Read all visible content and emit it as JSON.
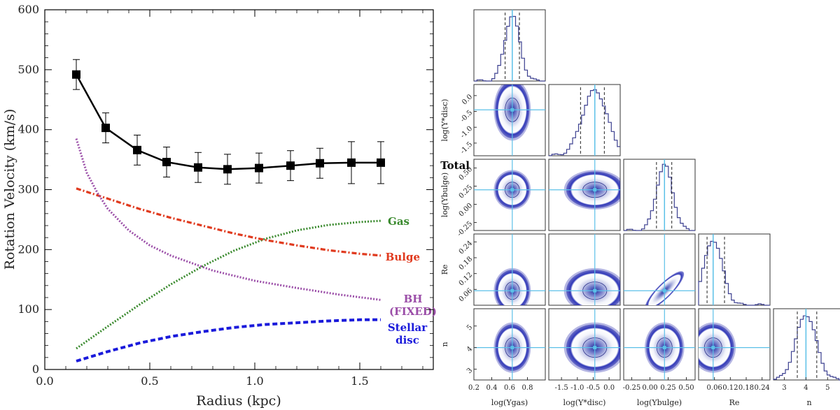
{
  "chart_data": [
    {
      "type": "line",
      "xlabel": "Radius (kpc)",
      "ylabel": "Rotation Velocity (km/s)",
      "xlim": [
        0.0,
        1.85
      ],
      "ylim": [
        0,
        600
      ],
      "xticks": [
        "0.0",
        "0.5",
        "1.0",
        "1.5"
      ],
      "yticks": [
        "0",
        "100",
        "200",
        "300",
        "400",
        "500",
        "600"
      ],
      "total": {
        "name": "Total",
        "color": "#000000",
        "points": [
          {
            "x": 0.15,
            "y": 492,
            "err": 25
          },
          {
            "x": 0.29,
            "y": 403,
            "err": 25
          },
          {
            "x": 0.44,
            "y": 366,
            "err": 25
          },
          {
            "x": 0.58,
            "y": 346,
            "err": 25
          },
          {
            "x": 0.73,
            "y": 337,
            "err": 25
          },
          {
            "x": 0.87,
            "y": 334,
            "err": 25
          },
          {
            "x": 1.02,
            "y": 336,
            "err": 25
          },
          {
            "x": 1.17,
            "y": 340,
            "err": 25
          },
          {
            "x": 1.31,
            "y": 344,
            "err": 25
          },
          {
            "x": 1.46,
            "y": 345,
            "err": 35
          },
          {
            "x": 1.6,
            "y": 345,
            "err": 35
          }
        ]
      },
      "components": [
        {
          "name": "Gas",
          "color": "#3a8a2e",
          "style": "dotted",
          "x": [
            0.15,
            0.3,
            0.45,
            0.6,
            0.75,
            0.9,
            1.05,
            1.2,
            1.35,
            1.5,
            1.6
          ],
          "y": [
            35,
            72,
            108,
            142,
            172,
            198,
            218,
            232,
            241,
            246,
            248
          ]
        },
        {
          "name": "Bulge",
          "color": "#e03a1e",
          "style": "dashdot",
          "x": [
            0.15,
            0.3,
            0.45,
            0.6,
            0.75,
            0.9,
            1.05,
            1.2,
            1.35,
            1.5,
            1.6
          ],
          "y": [
            302,
            285,
            268,
            253,
            240,
            227,
            216,
            207,
            199,
            193,
            190
          ]
        },
        {
          "name": "BH (FIXED)",
          "color": "#9b4ea8",
          "style": "dotted",
          "x": [
            0.15,
            0.2,
            0.25,
            0.3,
            0.4,
            0.5,
            0.6,
            0.8,
            1.0,
            1.2,
            1.4,
            1.6
          ],
          "y": [
            385,
            328,
            295,
            268,
            232,
            207,
            190,
            165,
            148,
            136,
            125,
            116
          ]
        },
        {
          "name": "Stellar disc",
          "color": "#1a1adb",
          "style": "dashed",
          "x": [
            0.15,
            0.3,
            0.45,
            0.6,
            0.75,
            0.9,
            1.05,
            1.2,
            1.35,
            1.5,
            1.6
          ],
          "y": [
            14,
            30,
            44,
            55,
            63,
            70,
            75,
            78,
            81,
            83,
            83
          ]
        }
      ]
    },
    {
      "type": "corner",
      "parameters": [
        {
          "key": "gas",
          "label": "log(Υgas)",
          "median": 0.63,
          "q16": 0.55,
          "q84": 0.71,
          "range": [
            0.2,
            1.0
          ],
          "ticks": [
            "0.2",
            "0.4",
            "0.6",
            "0.8"
          ]
        },
        {
          "key": "disc",
          "label": "log(Υ*disc)",
          "median": -0.45,
          "q16": -0.9,
          "q84": -0.15,
          "range": [
            -1.9,
            0.35
          ],
          "ticks": [
            "-1.5",
            "-1.0",
            "-0.5",
            "0.0"
          ]
        },
        {
          "key": "bulge",
          "label": "log(Υbulge)",
          "median": 0.2,
          "q16": 0.09,
          "q84": 0.3,
          "range": [
            -0.36,
            0.62
          ],
          "ticks": [
            "-0.25",
            "0.00",
            "0.25",
            "0.50"
          ]
        },
        {
          "key": "Re",
          "label": "Re",
          "median": 0.055,
          "q16": 0.032,
          "q84": 0.098,
          "range": [
            0.0,
            0.27
          ],
          "ticks": [
            "0.06",
            "0.12",
            "0.18",
            "0.24"
          ]
        },
        {
          "key": "n",
          "label": "n",
          "median": 4.0,
          "q16": 3.6,
          "q84": 4.5,
          "range": [
            2.5,
            5.8
          ],
          "ticks": [
            "3",
            "4",
            "5"
          ]
        }
      ],
      "marker_color": "#5bc0e8"
    }
  ]
}
